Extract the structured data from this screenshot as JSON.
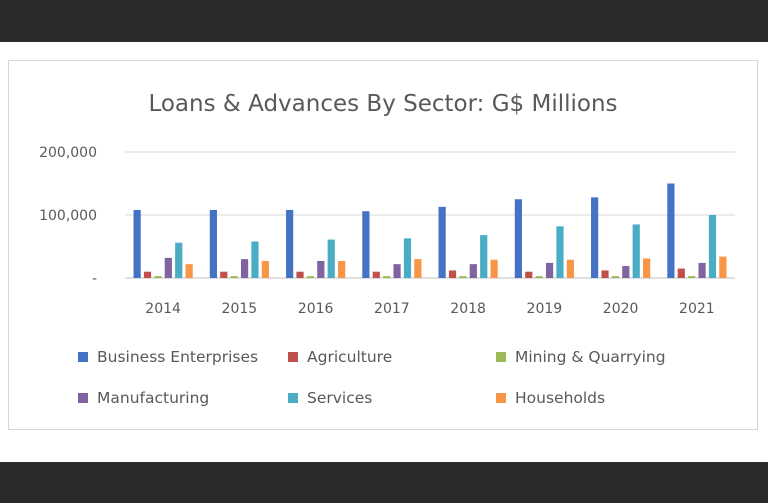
{
  "chart_data": {
    "type": "bar",
    "title": "Loans & Advances By Sector: G$ Millions",
    "categories": [
      "2014",
      "2015",
      "2016",
      "2017",
      "2018",
      "2019",
      "2020",
      "2021"
    ],
    "ylim": [
      0,
      200000
    ],
    "yticks": [
      {
        "value": 0,
        "label": "-"
      },
      {
        "value": 100000,
        "label": "100,000"
      },
      {
        "value": 200000,
        "label": "200,000"
      }
    ],
    "grid": true,
    "legend": "bottom",
    "series": [
      {
        "name": "Business Enterprises",
        "color": "#4472C4",
        "values": [
          108000,
          108000,
          108000,
          106000,
          113000,
          125000,
          128000,
          150000
        ]
      },
      {
        "name": "Agriculture",
        "color": "#C0504D",
        "values": [
          10000,
          10000,
          10000,
          10000,
          12000,
          10000,
          12000,
          15000
        ]
      },
      {
        "name": "Mining & Quarrying",
        "color": "#9BBB59",
        "values": [
          3000,
          3000,
          3000,
          3000,
          3000,
          3000,
          3000,
          3000
        ]
      },
      {
        "name": "Manufacturing",
        "color": "#8064A2",
        "values": [
          32000,
          30000,
          27000,
          22000,
          22000,
          24000,
          19000,
          24000
        ]
      },
      {
        "name": "Services",
        "color": "#4BACC6",
        "values": [
          56000,
          58000,
          61000,
          63000,
          68000,
          82000,
          85000,
          100000
        ]
      },
      {
        "name": "Households",
        "color": "#F79646",
        "values": [
          22000,
          27000,
          27000,
          30000,
          29000,
          29000,
          31000,
          34000
        ]
      }
    ]
  }
}
